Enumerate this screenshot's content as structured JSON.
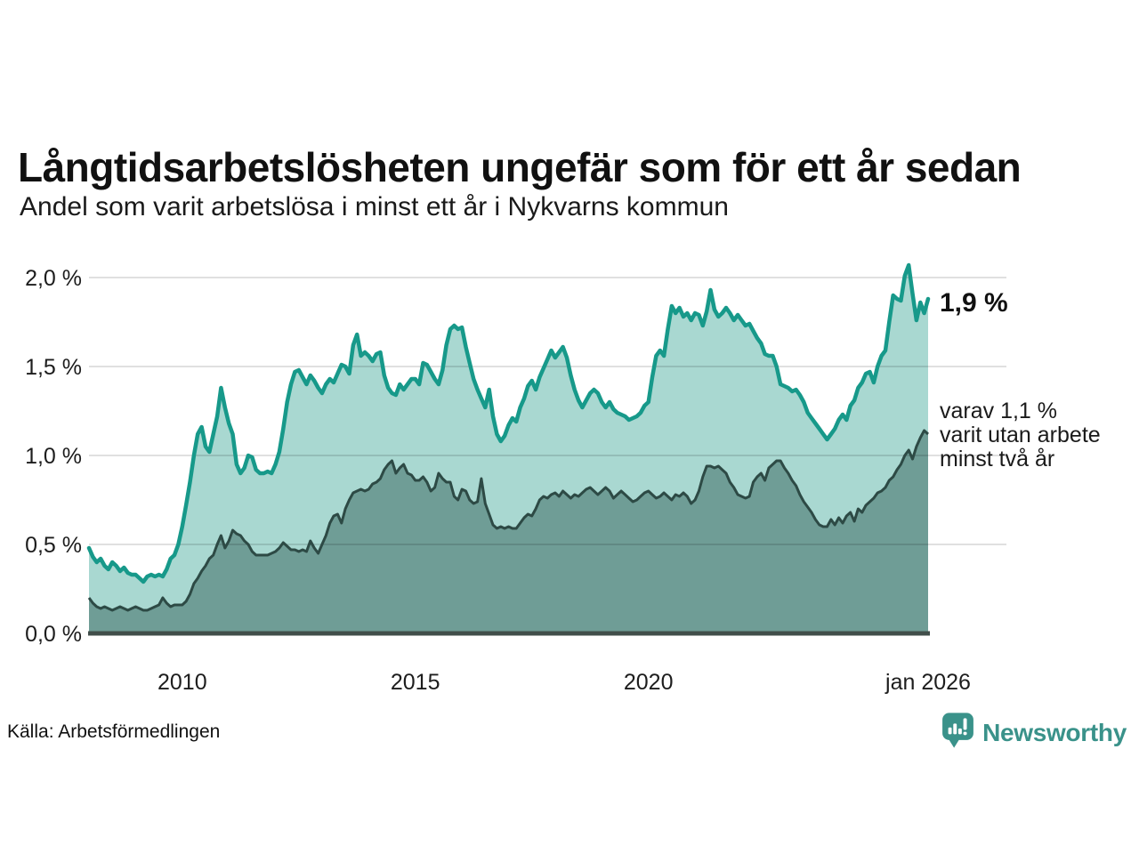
{
  "header": {
    "title": "Långtidsarbetslösheten ungefär som för ett år sedan",
    "subtitle": "Andel som varit arbetslösa i minst ett år i Nykvarns kommun"
  },
  "annotations": {
    "latest_value": "1,9 %",
    "secondary_line1": "varav 1,1 %",
    "secondary_line2": "varit utan arbete",
    "secondary_line3": "minst två år"
  },
  "footer": {
    "source": "Källa: Arbetsförmedlingen",
    "brand": "Newsworthy"
  },
  "colors": {
    "line_teal": "#17998a",
    "area_light": "#a9d8d1",
    "line_dark": "#2d4a45",
    "area_dark": "#6f9d96",
    "baseline": "#414e4a",
    "gridline": "rgba(0,0,0,0.12)",
    "brand_teal": "#3a928a"
  },
  "chart_data": {
    "type": "area",
    "title": "Långtidsarbetslösheten ungefär som för ett år sedan",
    "subtitle": "Andel som varit arbetslösa i minst ett år i Nykvarns kommun",
    "x_start": "2008-01",
    "x_end": "2026-01",
    "interval": "monthly",
    "ylim": [
      0,
      2.15
    ],
    "grid": true,
    "legend_position": "none",
    "ylabel": "",
    "xlabel": "",
    "y_ticks": [
      {
        "value": 0.0,
        "label": "0,0 %"
      },
      {
        "value": 0.5,
        "label": "0,5 %"
      },
      {
        "value": 1.0,
        "label": "1,0 %"
      },
      {
        "value": 1.5,
        "label": "1,5 %"
      },
      {
        "value": 2.0,
        "label": "2,0 %"
      }
    ],
    "x_ticks": [
      {
        "month_index": 24,
        "label": "2010"
      },
      {
        "month_index": 84,
        "label": "2015"
      },
      {
        "month_index": 144,
        "label": "2020"
      },
      {
        "month_index": 216,
        "label": "jan 2026"
      }
    ],
    "series": [
      {
        "name": "Andel arbetslösa minst ett år",
        "end_label": "1,9 %",
        "values": [
          0.48,
          0.43,
          0.4,
          0.42,
          0.38,
          0.36,
          0.4,
          0.38,
          0.35,
          0.37,
          0.34,
          0.33,
          0.33,
          0.31,
          0.29,
          0.32,
          0.33,
          0.32,
          0.33,
          0.32,
          0.36,
          0.42,
          0.44,
          0.5,
          0.6,
          0.72,
          0.85,
          1.0,
          1.12,
          1.16,
          1.05,
          1.02,
          1.12,
          1.22,
          1.38,
          1.27,
          1.18,
          1.12,
          0.95,
          0.9,
          0.93,
          1.0,
          0.99,
          0.92,
          0.9,
          0.9,
          0.91,
          0.9,
          0.95,
          1.02,
          1.15,
          1.3,
          1.4,
          1.47,
          1.48,
          1.44,
          1.4,
          1.45,
          1.42,
          1.38,
          1.35,
          1.4,
          1.43,
          1.41,
          1.46,
          1.51,
          1.5,
          1.46,
          1.62,
          1.68,
          1.56,
          1.58,
          1.56,
          1.53,
          1.57,
          1.58,
          1.45,
          1.38,
          1.35,
          1.34,
          1.4,
          1.37,
          1.4,
          1.43,
          1.43,
          1.4,
          1.52,
          1.51,
          1.47,
          1.43,
          1.4,
          1.48,
          1.62,
          1.71,
          1.73,
          1.71,
          1.72,
          1.61,
          1.52,
          1.43,
          1.37,
          1.32,
          1.27,
          1.37,
          1.22,
          1.12,
          1.08,
          1.11,
          1.17,
          1.21,
          1.19,
          1.27,
          1.32,
          1.39,
          1.42,
          1.37,
          1.44,
          1.49,
          1.54,
          1.59,
          1.55,
          1.58,
          1.61,
          1.55,
          1.45,
          1.37,
          1.31,
          1.27,
          1.31,
          1.35,
          1.37,
          1.35,
          1.3,
          1.27,
          1.3,
          1.26,
          1.24,
          1.23,
          1.22,
          1.2,
          1.21,
          1.22,
          1.24,
          1.28,
          1.3,
          1.44,
          1.56,
          1.59,
          1.56,
          1.71,
          1.84,
          1.8,
          1.83,
          1.78,
          1.8,
          1.76,
          1.8,
          1.79,
          1.73,
          1.81,
          1.93,
          1.82,
          1.78,
          1.8,
          1.83,
          1.8,
          1.76,
          1.79,
          1.76,
          1.73,
          1.74,
          1.7,
          1.66,
          1.63,
          1.57,
          1.56,
          1.56,
          1.5,
          1.4,
          1.39,
          1.38,
          1.36,
          1.37,
          1.34,
          1.3,
          1.24,
          1.21,
          1.18,
          1.15,
          1.12,
          1.09,
          1.12,
          1.15,
          1.2,
          1.23,
          1.2,
          1.28,
          1.31,
          1.38,
          1.41,
          1.46,
          1.47,
          1.41,
          1.5,
          1.56,
          1.59,
          1.75,
          1.9,
          1.88,
          1.87,
          2.01,
          2.07,
          1.91,
          1.76,
          1.86,
          1.8,
          1.88
        ]
      },
      {
        "name": "varav utan arbete minst två år",
        "end_label": "varav 1,1 % varit utan arbete minst två år",
        "values": [
          0.2,
          0.17,
          0.15,
          0.14,
          0.15,
          0.14,
          0.13,
          0.14,
          0.15,
          0.14,
          0.13,
          0.14,
          0.15,
          0.14,
          0.13,
          0.13,
          0.14,
          0.15,
          0.16,
          0.2,
          0.17,
          0.15,
          0.16,
          0.16,
          0.16,
          0.18,
          0.22,
          0.28,
          0.31,
          0.35,
          0.38,
          0.42,
          0.44,
          0.5,
          0.55,
          0.48,
          0.52,
          0.58,
          0.56,
          0.55,
          0.52,
          0.5,
          0.46,
          0.44,
          0.44,
          0.44,
          0.44,
          0.45,
          0.46,
          0.48,
          0.51,
          0.49,
          0.47,
          0.47,
          0.46,
          0.47,
          0.46,
          0.52,
          0.48,
          0.45,
          0.5,
          0.55,
          0.62,
          0.66,
          0.67,
          0.62,
          0.7,
          0.75,
          0.79,
          0.8,
          0.81,
          0.8,
          0.81,
          0.84,
          0.85,
          0.87,
          0.92,
          0.95,
          0.97,
          0.9,
          0.93,
          0.95,
          0.9,
          0.89,
          0.86,
          0.86,
          0.88,
          0.85,
          0.8,
          0.82,
          0.9,
          0.87,
          0.85,
          0.85,
          0.77,
          0.75,
          0.81,
          0.8,
          0.75,
          0.73,
          0.74,
          0.87,
          0.73,
          0.67,
          0.61,
          0.59,
          0.6,
          0.59,
          0.6,
          0.59,
          0.59,
          0.62,
          0.65,
          0.67,
          0.66,
          0.7,
          0.75,
          0.77,
          0.76,
          0.78,
          0.79,
          0.77,
          0.8,
          0.78,
          0.76,
          0.78,
          0.77,
          0.79,
          0.81,
          0.82,
          0.8,
          0.78,
          0.8,
          0.82,
          0.8,
          0.76,
          0.78,
          0.8,
          0.78,
          0.76,
          0.74,
          0.75,
          0.77,
          0.79,
          0.8,
          0.78,
          0.76,
          0.77,
          0.79,
          0.77,
          0.75,
          0.78,
          0.77,
          0.79,
          0.77,
          0.73,
          0.75,
          0.8,
          0.88,
          0.94,
          0.94,
          0.93,
          0.94,
          0.92,
          0.9,
          0.85,
          0.82,
          0.78,
          0.77,
          0.76,
          0.77,
          0.85,
          0.88,
          0.9,
          0.86,
          0.93,
          0.95,
          0.97,
          0.97,
          0.93,
          0.9,
          0.86,
          0.83,
          0.78,
          0.74,
          0.71,
          0.68,
          0.64,
          0.61,
          0.6,
          0.6,
          0.64,
          0.61,
          0.65,
          0.62,
          0.66,
          0.68,
          0.63,
          0.7,
          0.68,
          0.72,
          0.74,
          0.76,
          0.79,
          0.8,
          0.82,
          0.86,
          0.88,
          0.92,
          0.95,
          1.0,
          1.03,
          0.98,
          1.05,
          1.1,
          1.14,
          1.12
        ]
      }
    ]
  }
}
